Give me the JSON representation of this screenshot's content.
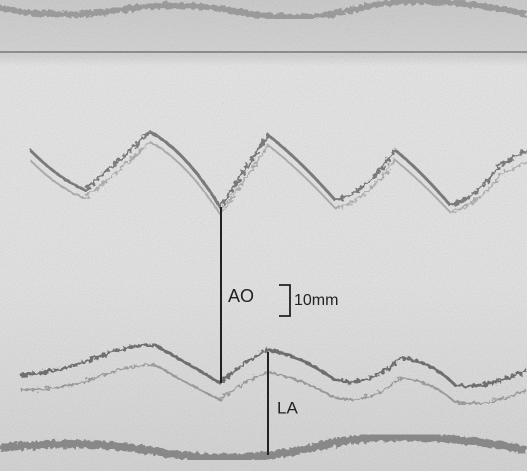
{
  "labels": {
    "aorta": "AO",
    "scale": "10mm",
    "left_atrium": "LA"
  }
}
